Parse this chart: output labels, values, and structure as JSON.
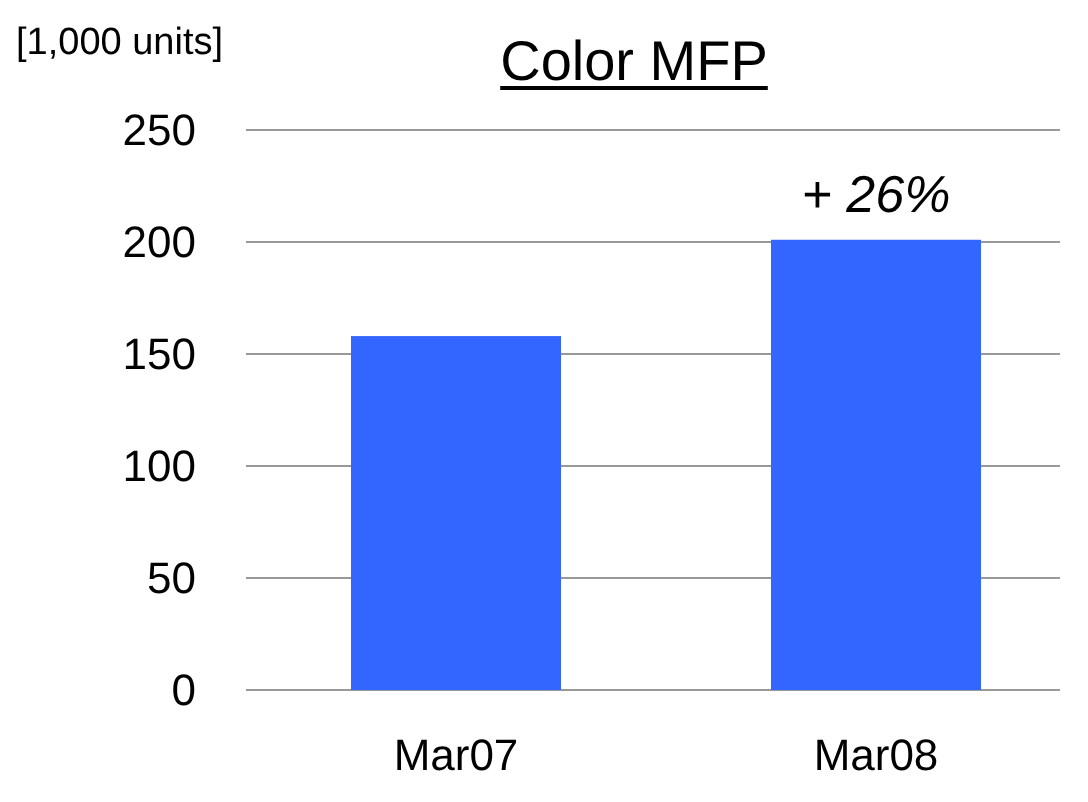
{
  "chart_data": {
    "type": "bar",
    "title": "Color MFP",
    "ylabel": "[1,000 units]",
    "categories": [
      "Mar07",
      "Mar08"
    ],
    "values": [
      158,
      201
    ],
    "color": "#3366ff",
    "ylim": [
      0,
      250
    ],
    "yticks": [
      0,
      50,
      100,
      150,
      200,
      250
    ],
    "grid": "y",
    "annotations": [
      {
        "text": "+ 26%",
        "x": "Mar08",
        "y": 201
      }
    ]
  }
}
